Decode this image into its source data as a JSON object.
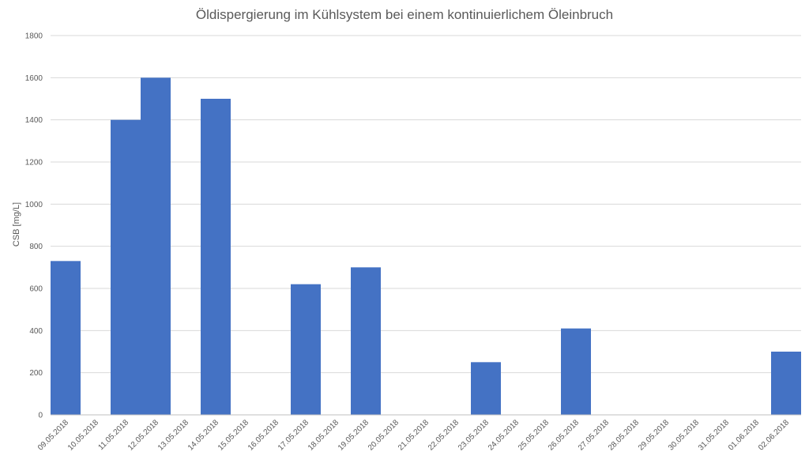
{
  "chart_data": {
    "type": "bar",
    "title": "Öldispergierung im Kühlsystem bei einem kontinuierlichem Öleinbruch",
    "xlabel": "",
    "ylabel": "CSB [mg/L]",
    "ylim": [
      0,
      1800
    ],
    "yticks": [
      0,
      200,
      400,
      600,
      800,
      1000,
      1200,
      1400,
      1600,
      1800
    ],
    "grid": true,
    "legend": "none",
    "bar_color": "#4472c4",
    "categories": [
      "09.05.2018",
      "10.05.2018",
      "11.05.2018",
      "12.05.2018",
      "13.05.2018",
      "14.05.2018",
      "15.05.2018",
      "16.05.2018",
      "17.05.2018",
      "18.05.2018",
      "19.05.2018",
      "20.05.2018",
      "21.05.2018",
      "22.05.2018",
      "23.05.2018",
      "24.05.2018",
      "25.05.2018",
      "26.05.2018",
      "27.05.2018",
      "28.05.2018",
      "29.05.2018",
      "30.05.2018",
      "31.05.2018",
      "01.06.2018",
      "02.06.2018"
    ],
    "values": [
      730,
      null,
      1400,
      1600,
      null,
      1500,
      null,
      null,
      620,
      null,
      700,
      null,
      null,
      null,
      250,
      null,
      null,
      410,
      null,
      null,
      null,
      null,
      null,
      null,
      300
    ]
  }
}
